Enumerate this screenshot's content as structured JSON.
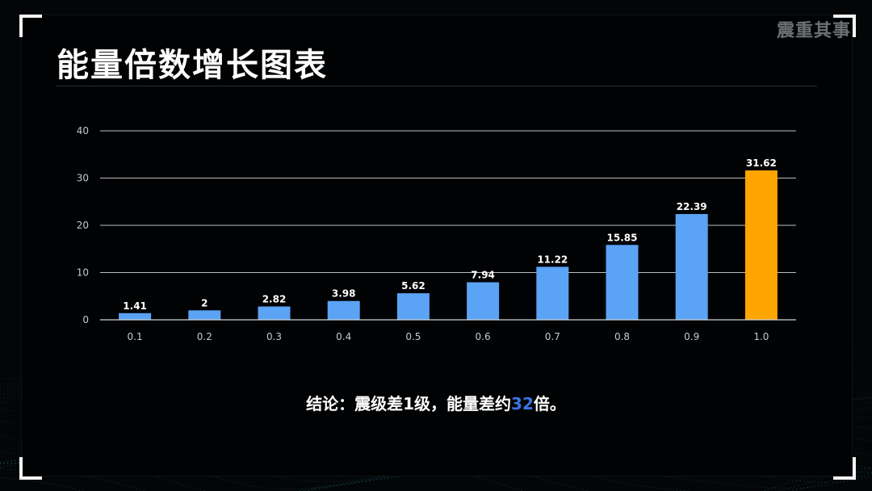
{
  "watermark": "震重其事",
  "title": "能量倍数增长图表",
  "conclusion": {
    "prefix": "结论：震级差1级，能量差约",
    "highlight": "32",
    "suffix": "倍。"
  },
  "colors": {
    "bar": "#5aa3f5",
    "highlight_bar": "#ffa500",
    "grid": "#cfd3d6",
    "tick_label": "#c5c9cc",
    "data_label": "#ffffff",
    "conclusion_highlight": "#3d74e8"
  },
  "chart_data": {
    "type": "bar",
    "title": "",
    "xlabel": "",
    "ylabel": "",
    "categories": [
      "0.1",
      "0.2",
      "0.3",
      "0.4",
      "0.5",
      "0.6",
      "0.7",
      "0.8",
      "0.9",
      "1.0"
    ],
    "values": [
      1.41,
      2,
      2.82,
      3.98,
      5.62,
      7.94,
      11.22,
      15.85,
      22.39,
      31.62
    ],
    "data_labels": [
      "1.41",
      "2",
      "2.82",
      "3.98",
      "5.62",
      "7.94",
      "11.22",
      "15.85",
      "22.39",
      "31.62"
    ],
    "highlight_index": 9,
    "ylim": [
      0,
      40
    ],
    "yticks": [
      0,
      10,
      20,
      30,
      40
    ],
    "grid": true,
    "legend": "none"
  }
}
